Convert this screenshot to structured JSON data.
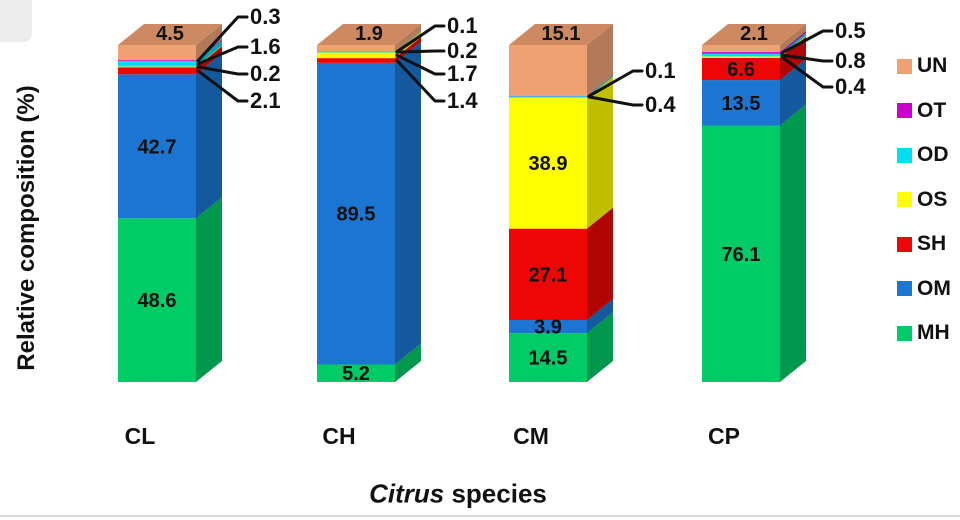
{
  "chart_data": {
    "type": "bar",
    "variant": "3d-stacked-percentage",
    "title": "",
    "ylabel": "Relative composition (%)",
    "xlabel_italic": "Citrus",
    "xlabel_rest": " species",
    "ylim": [
      0,
      100
    ],
    "grid": false,
    "legend_position": "right",
    "categories": [
      "CL",
      "CH",
      "CM",
      "CP"
    ],
    "series": [
      {
        "name": "MH",
        "color": "#00CB66",
        "values": [
          48.6,
          5.2,
          14.5,
          76.1
        ]
      },
      {
        "name": "OM",
        "color": "#1B75D1",
        "values": [
          42.7,
          89.5,
          3.9,
          13.5
        ]
      },
      {
        "name": "SH",
        "color": "#EE0505",
        "values": [
          2.1,
          1.4,
          27.1,
          6.6
        ]
      },
      {
        "name": "OS",
        "color": "#FEFE00",
        "values": [
          0.2,
          1.7,
          38.9,
          0.4
        ]
      },
      {
        "name": "OD",
        "color": "#00DDEE",
        "values": [
          1.6,
          0.2,
          0.4,
          0.8
        ]
      },
      {
        "name": "OT",
        "color": "#C800C8",
        "values": [
          0.3,
          0.1,
          0.1,
          0.5
        ]
      },
      {
        "name": "UN",
        "color": "#F0A173",
        "values": [
          4.5,
          1.9,
          15.1,
          2.1
        ]
      }
    ],
    "legend": [
      "UN",
      "OT",
      "OD",
      "OS",
      "SH",
      "OM",
      "MH"
    ],
    "callouts": {
      "CL": [
        {
          "series": "OT",
          "label": "0.3"
        },
        {
          "series": "OD",
          "label": "1.6"
        },
        {
          "series": "OS",
          "label": "0.2"
        },
        {
          "series": "SH",
          "label": "2.1"
        }
      ],
      "CH": [
        {
          "series": "OT",
          "label": "0.1"
        },
        {
          "series": "OD",
          "label": "0.2"
        },
        {
          "series": "OS",
          "label": "1.7"
        },
        {
          "series": "SH",
          "label": "1.4"
        }
      ],
      "CM": [
        {
          "series": "OT",
          "label": "0.1"
        },
        {
          "series": "OD",
          "label": "0.4"
        }
      ],
      "CP": [
        {
          "series": "OT",
          "label": "0.5"
        },
        {
          "series": "OD",
          "label": "0.8"
        },
        {
          "series": "OS",
          "label": "0.4"
        }
      ]
    }
  }
}
